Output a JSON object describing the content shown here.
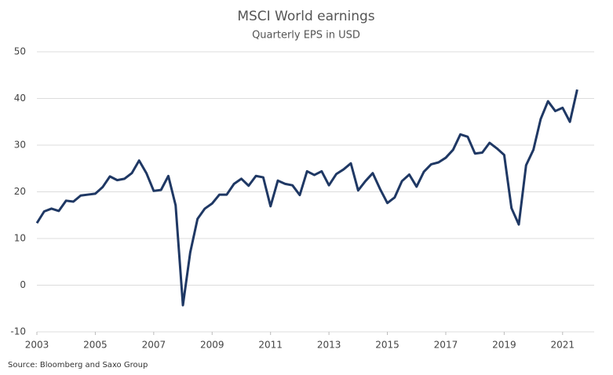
{
  "chart_data": {
    "type": "line",
    "title": "MSCI World earnings",
    "subtitle": "Quarterly EPS in USD",
    "source": "Source: Bloomberg and Saxo Group",
    "x": [
      2003,
      2003.25,
      2003.5,
      2003.75,
      2004,
      2004.25,
      2004.5,
      2004.75,
      2005,
      2005.25,
      2005.5,
      2005.75,
      2006,
      2006.25,
      2006.5,
      2006.75,
      2007,
      2007.25,
      2007.5,
      2007.75,
      2008,
      2008.25,
      2008.5,
      2008.75,
      2009,
      2009.25,
      2009.5,
      2009.75,
      2010,
      2010.25,
      2010.5,
      2010.75,
      2011,
      2011.25,
      2011.5,
      2011.75,
      2012,
      2012.25,
      2012.5,
      2012.75,
      2013,
      2013.25,
      2013.5,
      2013.75,
      2014,
      2014.25,
      2014.5,
      2014.75,
      2015,
      2015.25,
      2015.5,
      2015.75,
      2016,
      2016.25,
      2016.5,
      2016.75,
      2017,
      2017.25,
      2017.5,
      2017.75,
      2018,
      2018.25,
      2018.5,
      2018.75,
      2019,
      2019.25,
      2019.5,
      2019.75,
      2020,
      2020.25,
      2020.5,
      2020.75,
      2021,
      2021.25,
      2021.5
    ],
    "series": [
      {
        "name": "MSCI World EPS",
        "color": "#1f3864",
        "values": [
          13.3,
          15.8,
          16.4,
          15.9,
          18.1,
          17.9,
          19.2,
          19.4,
          19.6,
          21,
          23.3,
          22.5,
          22.8,
          24,
          26.7,
          24,
          20.2,
          20.4,
          23.4,
          17.1,
          -4.3,
          7,
          14.2,
          16.4,
          17.5,
          19.4,
          19.4,
          21.7,
          22.8,
          21.3,
          23.4,
          23.1,
          16.9,
          22.4,
          21.7,
          21.4,
          19.3,
          24.4,
          23.6,
          24.4,
          21.4,
          23.8,
          24.8,
          26.1,
          20.3,
          22.3,
          24,
          20.6,
          17.6,
          18.8,
          22.3,
          23.7,
          21.1,
          24.3,
          25.9,
          26.3,
          27.3,
          29,
          32.3,
          31.8,
          28.2,
          28.4,
          30.5,
          29.3,
          27.9,
          16.5,
          13,
          25.7,
          29,
          35.6,
          39.4,
          37.3,
          38,
          35,
          41.9
        ]
      }
    ],
    "xlim": [
      2003,
      2022
    ],
    "xticks": [
      2003,
      2005,
      2007,
      2009,
      2011,
      2013,
      2015,
      2017,
      2019,
      2021
    ],
    "ylim": [
      -10,
      50
    ],
    "yticks": [
      -10,
      0,
      10,
      20,
      30,
      40,
      50
    ],
    "grid": true
  }
}
